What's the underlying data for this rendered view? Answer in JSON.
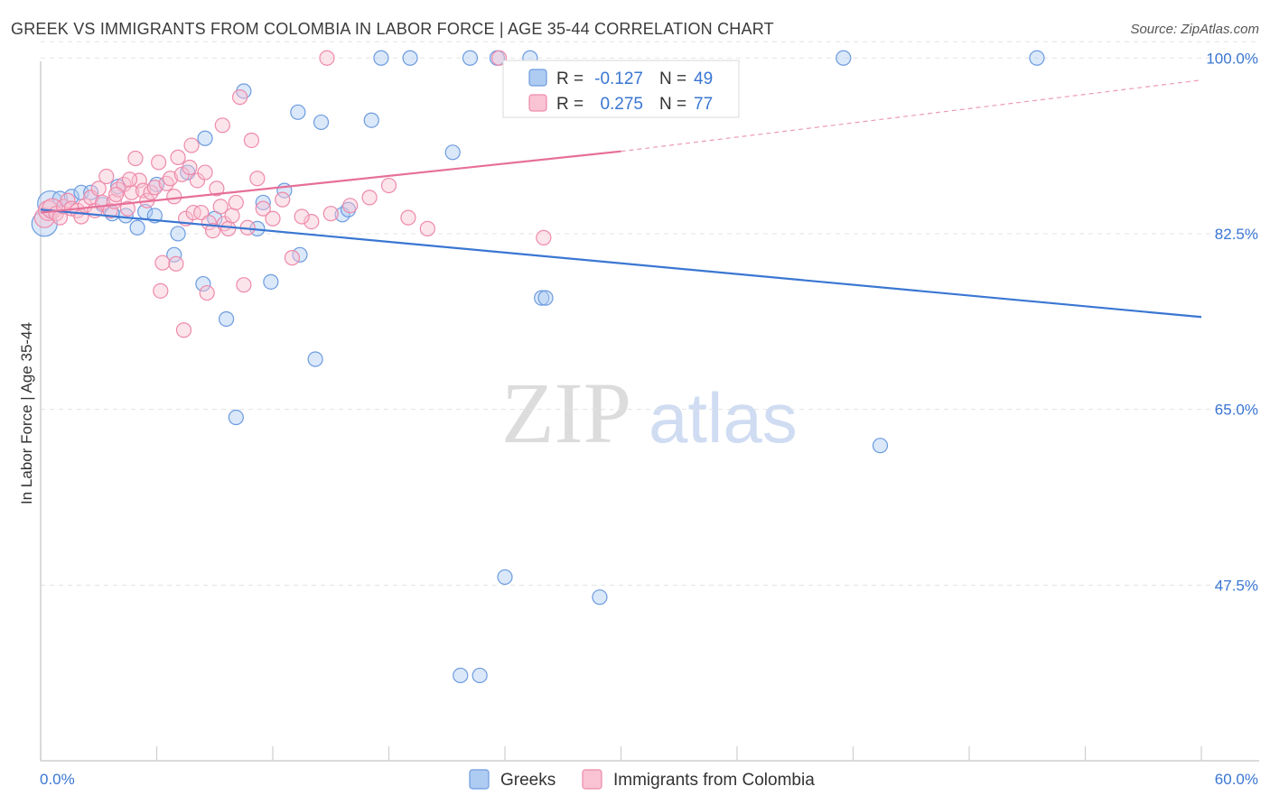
{
  "title": "GREEK VS IMMIGRANTS FROM COLOMBIA IN LABOR FORCE | AGE 35-44 CORRELATION CHART",
  "source": "Source: ZipAtlas.com",
  "watermark": {
    "zip": "ZIP",
    "atlas": "atlas"
  },
  "legend": {
    "r_label": "R =",
    "n_label": "N =",
    "rows": [
      {
        "r": "-0.127",
        "n": "49",
        "fill": "#aecbf2",
        "stroke": "#6c9be0"
      },
      {
        "r": "0.275",
        "n": "77",
        "fill": "#f9c3d3",
        "stroke": "#ee8aaa"
      }
    ]
  },
  "chart_data": {
    "type": "scatter",
    "title": "GREEK VS IMMIGRANTS FROM COLOMBIA IN LABOR FORCE | AGE 35-44 CORRELATION CHART",
    "xlabel": "",
    "ylabel": "In Labor Force | Age 35-44",
    "xlim": [
      0,
      60
    ],
    "ylim": [
      30,
      102
    ],
    "x_tick_labels": [
      "0.0%",
      "60.0%"
    ],
    "y_ticks": [
      47.5,
      65.0,
      82.5,
      100.0
    ],
    "y_tick_labels": [
      "47.5%",
      "65.0%",
      "82.5%",
      "100.0%"
    ],
    "grid": true,
    "legend_position": "bottom-center",
    "series": [
      {
        "name": "Greeks",
        "color": "#6c9be0",
        "fill": "#aecbf2",
        "line_color": "#3a76d2",
        "r": -0.127,
        "n": 49,
        "trend": {
          "x": [
            0,
            60
          ],
          "y": [
            84.9,
            74.2
          ],
          "dashed_to": null
        },
        "points": [
          [
            0.2,
            83.5
          ],
          [
            0.5,
            85.5
          ],
          [
            1.0,
            86.0
          ],
          [
            1.6,
            86.2
          ],
          [
            2.1,
            86.6
          ],
          [
            2.6,
            86.6
          ],
          [
            3.2,
            85.4
          ],
          [
            3.7,
            84.5
          ],
          [
            4.0,
            87.2
          ],
          [
            4.4,
            84.3
          ],
          [
            5.0,
            83.1
          ],
          [
            5.4,
            84.7
          ],
          [
            5.9,
            84.3
          ],
          [
            6.0,
            87.4
          ],
          [
            6.9,
            80.4
          ],
          [
            7.1,
            82.5
          ],
          [
            7.6,
            88.6
          ],
          [
            8.4,
            77.5
          ],
          [
            8.5,
            92.0
          ],
          [
            9.0,
            84.0
          ],
          [
            9.6,
            74.0
          ],
          [
            10.1,
            64.2
          ],
          [
            10.5,
            96.7
          ],
          [
            11.2,
            83.0
          ],
          [
            11.5,
            85.6
          ],
          [
            11.9,
            77.7
          ],
          [
            12.6,
            86.8
          ],
          [
            13.3,
            94.6
          ],
          [
            13.4,
            80.4
          ],
          [
            14.2,
            70.0
          ],
          [
            14.5,
            93.6
          ],
          [
            15.6,
            84.4
          ],
          [
            15.9,
            84.9
          ],
          [
            17.1,
            93.8
          ],
          [
            17.6,
            100.0
          ],
          [
            19.1,
            100.0
          ],
          [
            21.3,
            90.6
          ],
          [
            21.7,
            38.5
          ],
          [
            22.2,
            100.0
          ],
          [
            22.7,
            38.5
          ],
          [
            23.6,
            100.0
          ],
          [
            24.0,
            48.3
          ],
          [
            25.3,
            100.0
          ],
          [
            25.9,
            76.1
          ],
          [
            26.1,
            76.1
          ],
          [
            28.9,
            46.3
          ],
          [
            41.5,
            100.0
          ],
          [
            43.4,
            61.4
          ],
          [
            51.5,
            100.0
          ]
        ]
      },
      {
        "name": "Immigrants from Colombia",
        "color": "#ee8aaa",
        "fill": "#f9c3d3",
        "line_color": "#e66f98",
        "r": 0.275,
        "n": 77,
        "trend": {
          "x": [
            0,
            30
          ],
          "y": [
            84.6,
            90.7
          ],
          "dashed_to": [
            60,
            97.8
          ]
        },
        "points": [
          [
            0.2,
            84.1
          ],
          [
            0.4,
            84.8
          ],
          [
            0.6,
            85.0
          ],
          [
            0.8,
            84.5
          ],
          [
            1.0,
            84.1
          ],
          [
            1.2,
            85.2
          ],
          [
            1.4,
            85.8
          ],
          [
            1.6,
            85.0
          ],
          [
            1.9,
            84.8
          ],
          [
            2.1,
            84.2
          ],
          [
            2.3,
            85.3
          ],
          [
            2.6,
            86.1
          ],
          [
            2.8,
            84.8
          ],
          [
            3.0,
            87.0
          ],
          [
            3.2,
            85.6
          ],
          [
            3.4,
            88.2
          ],
          [
            3.6,
            84.8
          ],
          [
            3.8,
            85.7
          ],
          [
            4.0,
            86.9
          ],
          [
            4.3,
            87.4
          ],
          [
            4.5,
            85.0
          ],
          [
            4.7,
            86.6
          ],
          [
            4.9,
            90.0
          ],
          [
            5.1,
            87.8
          ],
          [
            5.3,
            86.8
          ],
          [
            5.5,
            85.8
          ],
          [
            5.7,
            86.6
          ],
          [
            5.9,
            87.1
          ],
          [
            6.1,
            89.6
          ],
          [
            6.3,
            79.6
          ],
          [
            6.5,
            87.5
          ],
          [
            6.7,
            88.0
          ],
          [
            6.9,
            86.2
          ],
          [
            7.1,
            90.1
          ],
          [
            7.3,
            88.4
          ],
          [
            7.5,
            84.0
          ],
          [
            7.7,
            89.1
          ],
          [
            7.9,
            84.6
          ],
          [
            8.1,
            87.8
          ],
          [
            8.3,
            84.6
          ],
          [
            8.5,
            88.6
          ],
          [
            8.7,
            83.6
          ],
          [
            8.9,
            82.8
          ],
          [
            9.1,
            87.0
          ],
          [
            9.3,
            85.2
          ],
          [
            9.5,
            83.5
          ],
          [
            9.7,
            83.0
          ],
          [
            9.9,
            84.3
          ],
          [
            10.1,
            85.6
          ],
          [
            10.3,
            96.1
          ],
          [
            10.5,
            77.4
          ],
          [
            10.7,
            83.1
          ],
          [
            10.9,
            91.8
          ],
          [
            11.2,
            88.0
          ],
          [
            11.5,
            85.0
          ],
          [
            12.0,
            84.0
          ],
          [
            13.0,
            80.1
          ],
          [
            14.0,
            83.7
          ],
          [
            15.0,
            84.5
          ],
          [
            16.0,
            85.3
          ],
          [
            17.0,
            86.1
          ],
          [
            18.0,
            87.3
          ],
          [
            19.0,
            84.1
          ],
          [
            20.0,
            83.0
          ],
          [
            26.0,
            82.1
          ],
          [
            7.4,
            72.9
          ],
          [
            7.0,
            79.5
          ],
          [
            8.6,
            76.6
          ],
          [
            7.8,
            91.3
          ],
          [
            4.6,
            87.9
          ],
          [
            3.9,
            86.4
          ],
          [
            6.2,
            76.8
          ],
          [
            9.4,
            93.3
          ],
          [
            12.5,
            85.9
          ],
          [
            13.5,
            84.2
          ],
          [
            14.8,
            100.0
          ],
          [
            23.7,
            100.0
          ]
        ]
      }
    ]
  }
}
